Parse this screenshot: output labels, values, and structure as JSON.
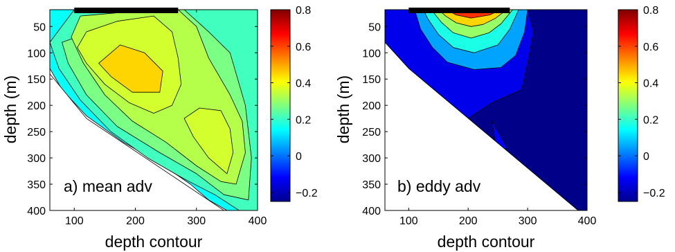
{
  "chart_data": [
    {
      "type": "contour",
      "annotation": "a)  mean adv",
      "xlabel": "depth contour",
      "ylabel": "depth (m)",
      "xlim": [
        60,
        400
      ],
      "ylim": [
        400,
        18
      ],
      "xticks": [
        100,
        200,
        300,
        400
      ],
      "yticks": [
        50,
        100,
        150,
        200,
        250,
        300,
        350,
        400
      ],
      "colorbar": {
        "range": [
          -0.25,
          0.8
        ],
        "ticks": [
          "0.8",
          "0.6",
          "0.4",
          "0.2",
          "0",
          "−0.2"
        ],
        "tick_values": [
          0.8,
          0.6,
          0.4,
          0.2,
          0,
          -0.2
        ]
      },
      "top_bar": [
        100,
        270
      ],
      "regions": [
        {
          "level": 0.15,
          "points": [
            [
              60,
              18
            ],
            [
              400,
              18
            ],
            [
              400,
              400
            ],
            [
              350,
              400
            ],
            [
              320,
              380
            ],
            [
              290,
              350
            ],
            [
              240,
              310
            ],
            [
              180,
              270
            ],
            [
              120,
              220
            ],
            [
              80,
              170
            ],
            [
              60,
              130
            ]
          ]
        },
        {
          "level": 0.21,
          "points": [
            [
              100,
              18
            ],
            [
              400,
              18
            ],
            [
              400,
              400
            ],
            [
              370,
              400
            ],
            [
              330,
              370
            ],
            [
              280,
              340
            ],
            [
              220,
              300
            ],
            [
              160,
              250
            ],
            [
              110,
              190
            ],
            [
              75,
              130
            ],
            [
              60,
              80
            ]
          ]
        },
        {
          "level": 0.27,
          "points": [
            [
              230,
              18
            ],
            [
              280,
              18
            ],
            [
              320,
              60
            ],
            [
              355,
              100
            ],
            [
              380,
              200
            ],
            [
              390,
              300
            ],
            [
              385,
              380
            ],
            [
              345,
              370
            ],
            [
              300,
              330
            ],
            [
              240,
              290
            ],
            [
              170,
              240
            ],
            [
              120,
              180
            ],
            [
              90,
              120
            ],
            [
              80,
              80
            ]
          ]
        },
        {
          "level": 0.33,
          "points": [
            [
              110,
              30
            ],
            [
              230,
              18
            ],
            [
              270,
              18
            ],
            [
              300,
              50
            ],
            [
              320,
              110
            ],
            [
              355,
              180
            ],
            [
              375,
              230
            ],
            [
              380,
              290
            ],
            [
              365,
              350
            ],
            [
              340,
              345
            ],
            [
              300,
              315
            ],
            [
              250,
              270
            ],
            [
              195,
              230
            ],
            [
              150,
              180
            ],
            [
              115,
              120
            ],
            [
              95,
              70
            ]
          ]
        },
        {
          "level": 0.36,
          "points": [
            [
              120,
              60
            ],
            [
              170,
              40
            ],
            [
              230,
              30
            ],
            [
              260,
              60
            ],
            [
              270,
              110
            ],
            [
              275,
              160
            ],
            [
              260,
              200
            ],
            [
              230,
              215
            ],
            [
              190,
              195
            ],
            [
              150,
              160
            ],
            [
              120,
              120
            ],
            [
              105,
              90
            ]
          ]
        },
        {
          "level": 0.36,
          "points": [
            [
              280,
              225
            ],
            [
              305,
              205
            ],
            [
              340,
              210
            ],
            [
              355,
              245
            ],
            [
              360,
              290
            ],
            [
              350,
              330
            ],
            [
              320,
              300
            ],
            [
              295,
              260
            ]
          ]
        },
        {
          "level": 0.45,
          "points": [
            [
              140,
              120
            ],
            [
              175,
              85
            ],
            [
              215,
              100
            ],
            [
              245,
              135
            ],
            [
              240,
              175
            ],
            [
              195,
              175
            ],
            [
              160,
              145
            ]
          ]
        }
      ],
      "contour_levels": [
        0.06,
        0.1,
        0.15,
        0.2,
        0.25,
        0.3,
        0.35,
        0.4
      ]
    },
    {
      "type": "contour",
      "annotation": "b)  eddy adv",
      "xlabel": "depth contour",
      "ylabel": "depth (m)",
      "xlim": [
        60,
        400
      ],
      "ylim": [
        400,
        18
      ],
      "xticks": [
        100,
        200,
        300,
        400
      ],
      "yticks": [
        50,
        100,
        150,
        200,
        250,
        300,
        350,
        400
      ],
      "colorbar": {
        "range": [
          -0.25,
          0.8
        ],
        "ticks": [
          "0.8",
          "0.6",
          "0.4",
          "0.2",
          "0",
          "−0.2"
        ],
        "tick_values": [
          0.8,
          0.6,
          0.4,
          0.2,
          0,
          -0.2
        ]
      },
      "top_bar": [
        100,
        270
      ],
      "regions": [
        {
          "level": -0.14,
          "points": [
            [
              60,
              18
            ],
            [
              400,
              18
            ],
            [
              400,
              400
            ],
            [
              60,
              400
            ]
          ]
        },
        {
          "level": -0.24,
          "points": [
            [
              200,
              225
            ],
            [
              240,
              195
            ],
            [
              290,
              170
            ],
            [
              300,
              120
            ],
            [
              310,
              60
            ],
            [
              300,
              18
            ],
            [
              400,
              18
            ],
            [
              400,
              400
            ],
            [
              300,
              400
            ],
            [
              260,
              330
            ],
            [
              230,
              280
            ]
          ]
        },
        {
          "level": -0.12,
          "points": [
            [
              240,
              230
            ],
            [
              265,
              280
            ],
            [
              250,
              300
            ]
          ]
        },
        {
          "level": 0.05,
          "points": [
            [
              110,
              18
            ],
            [
              300,
              18
            ],
            [
              295,
              60
            ],
            [
              280,
              105
            ],
            [
              255,
              128
            ],
            [
              210,
              132
            ],
            [
              165,
              118
            ],
            [
              140,
              90
            ],
            [
              120,
              55
            ]
          ]
        },
        {
          "level": 0.17,
          "points": [
            [
              125,
              18
            ],
            [
              285,
              18
            ],
            [
              270,
              55
            ],
            [
              250,
              85
            ],
            [
              210,
              100
            ],
            [
              175,
              90
            ],
            [
              150,
              65
            ],
            [
              132,
              35
            ]
          ]
        },
        {
          "level": 0.3,
          "points": [
            [
              138,
              18
            ],
            [
              275,
              18
            ],
            [
              255,
              45
            ],
            [
              235,
              62
            ],
            [
              205,
              72
            ],
            [
              175,
              62
            ],
            [
              155,
              42
            ]
          ]
        },
        {
          "level": 0.45,
          "points": [
            [
              150,
              18
            ],
            [
              265,
              18
            ],
            [
              245,
              35
            ],
            [
              225,
              46
            ],
            [
              205,
              50
            ],
            [
              180,
              43
            ],
            [
              162,
              30
            ]
          ]
        },
        {
          "level": 0.62,
          "points": [
            [
              163,
              18
            ],
            [
              255,
              18
            ],
            [
              236,
              28
            ],
            [
              205,
              34
            ],
            [
              180,
              28
            ]
          ]
        },
        {
          "level": 0.78,
          "points": [
            [
              178,
              18
            ],
            [
              238,
              18
            ],
            [
              205,
              24
            ]
          ]
        }
      ],
      "contour_levels": [
        -0.2,
        -0.1,
        0.1,
        0.2,
        0.3,
        0.4,
        0.5,
        0.6,
        0.7
      ]
    }
  ]
}
